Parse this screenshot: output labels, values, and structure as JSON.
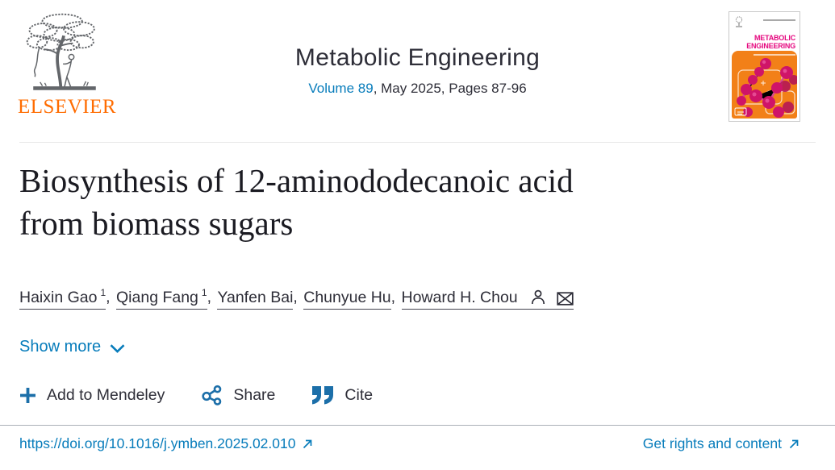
{
  "header": {
    "publisher": "ELSEVIER",
    "journal_title": "Metabolic Engineering",
    "volume_link": "Volume 89",
    "issue_info": ", May 2025, Pages 87-96",
    "cover": {
      "title_lines": [
        "METABOLIC",
        "ENGINEERING"
      ]
    }
  },
  "article": {
    "title_lines": [
      "Biosynthesis of 12-aminododecanoic acid",
      "from biomass sugars"
    ],
    "authors": [
      {
        "name": "Haixin Gao",
        "sup": "1",
        "corresponding": false
      },
      {
        "name": "Qiang Fang",
        "sup": "1",
        "corresponding": false
      },
      {
        "name": "Yanfen Bai",
        "sup": "",
        "corresponding": false
      },
      {
        "name": "Chunyue Hu",
        "sup": "",
        "corresponding": false
      },
      {
        "name": "Howard H. Chou",
        "sup": "",
        "corresponding": true
      }
    ],
    "show_more_label": "Show more"
  },
  "actions": {
    "mendeley_label": "Add to Mendeley",
    "share_label": "Share",
    "cite_label": "Cite"
  },
  "footer": {
    "doi_link": "https://doi.org/10.1016/j.ymben.2025.02.010",
    "rights_link": "Get rights and content"
  },
  "colors": {
    "link_blue": "#077cbb",
    "text_dark": "#2e2e38",
    "elsevier_orange": "#ff6c00",
    "cover_orange": "#f28018",
    "cover_magenta": "#e5067e"
  }
}
